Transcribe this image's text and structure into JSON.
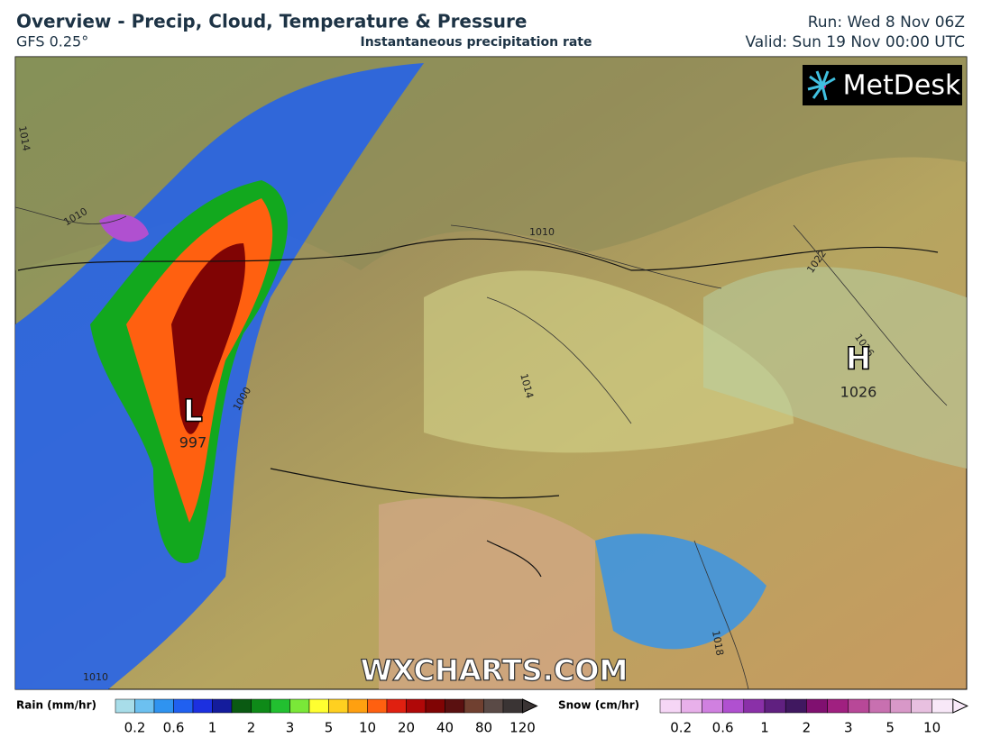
{
  "header": {
    "title": "Overview - Precip, Cloud, Temperature & Pressure",
    "model": "GFS 0.25°",
    "subtitle": "Instantaneous precipitation rate",
    "run": "Run: Wed 8 Nov 06Z",
    "valid": "Valid: Sun 19 Nov 00:00 UTC"
  },
  "map": {
    "logo": "MetDesk",
    "watermark": "WXCHARTS.COM",
    "low": {
      "symbol": "L",
      "pressure": "997"
    },
    "high": {
      "symbol": "H",
      "pressure": "1026"
    },
    "isobar_labels": [
      "1014",
      "1010",
      "1010",
      "1014",
      "1022",
      "1026",
      "1018",
      "1010",
      "1000"
    ]
  },
  "legend": {
    "rain": {
      "title": "Rain (mm/hr)",
      "ticks": [
        0.2,
        0.6,
        1,
        2,
        3,
        5,
        10,
        20,
        40,
        80,
        120
      ],
      "colors": [
        "#a8dde9",
        "#6cc0f0",
        "#2f93f0",
        "#2060f0",
        "#1c30e0",
        "#141c9c",
        "#0a5a12",
        "#0e8a18",
        "#22c030",
        "#7ae838",
        "#ffff30",
        "#ffd020",
        "#ffa010",
        "#ff6010",
        "#e02010",
        "#b00808",
        "#800404",
        "#5a1010",
        "#704030",
        "#5a4a46",
        "#3a3434"
      ]
    },
    "snow": {
      "title": "Snow (cm/hr)",
      "ticks": [
        0.2,
        0.6,
        1,
        2,
        3,
        5,
        10
      ],
      "colors": [
        "#f6d6f6",
        "#e8b0ea",
        "#d080e0",
        "#b050d0",
        "#8a30a8",
        "#602080",
        "#401860",
        "#801070",
        "#a02080",
        "#b84898",
        "#c870b0",
        "#d898c8",
        "#e8c0e0",
        "#f8e8f8"
      ]
    }
  }
}
